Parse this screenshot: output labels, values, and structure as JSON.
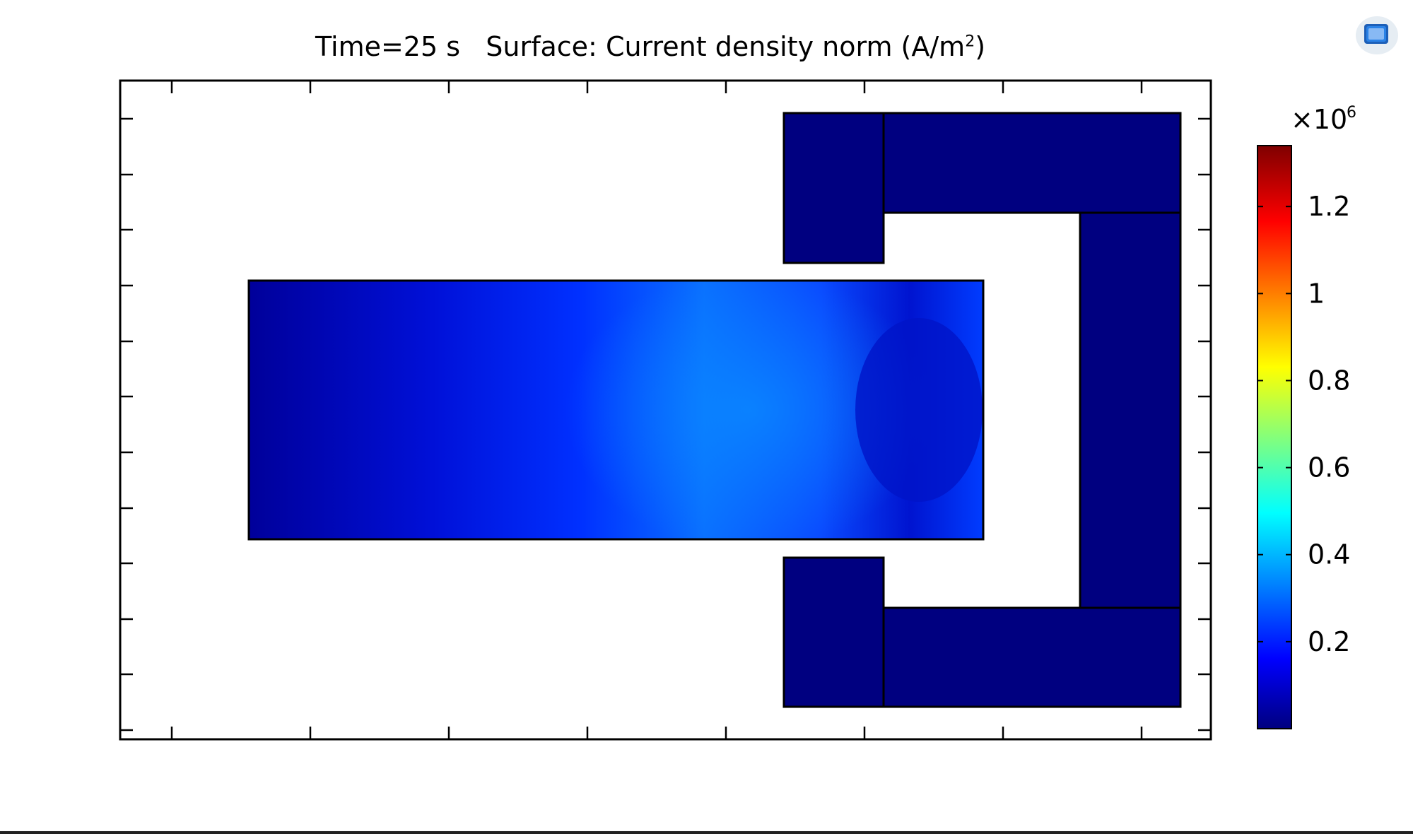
{
  "toolbar": {
    "view_icon": "view-cube-icon"
  },
  "chart_data": {
    "type": "heatmap",
    "title_time": "Time=25 s",
    "title_surface": "Surface: Current density norm (A/m",
    "title_exp": "2",
    "title_close": ")",
    "colorbar": {
      "multiplier": "×10",
      "multiplier_exp": "6",
      "ticks": [
        {
          "value": 0.2,
          "label": "0.2"
        },
        {
          "value": 0.4,
          "label": "0.4"
        },
        {
          "value": 0.6,
          "label": "0.6"
        },
        {
          "value": 0.8,
          "label": "0.8"
        },
        {
          "value": 1.0,
          "label": "1"
        },
        {
          "value": 1.2,
          "label": "1.2"
        }
      ],
      "range": [
        0.0,
        1.34
      ],
      "colormap": "rainbow",
      "colors": [
        "#00007f",
        "#0000ff",
        "#00ffff",
        "#ffff00",
        "#ff0000",
        "#7f0000"
      ]
    },
    "field_peak_color": "#b40000",
    "field_base_color": "#00008b",
    "yoke_color": "#000080"
  }
}
